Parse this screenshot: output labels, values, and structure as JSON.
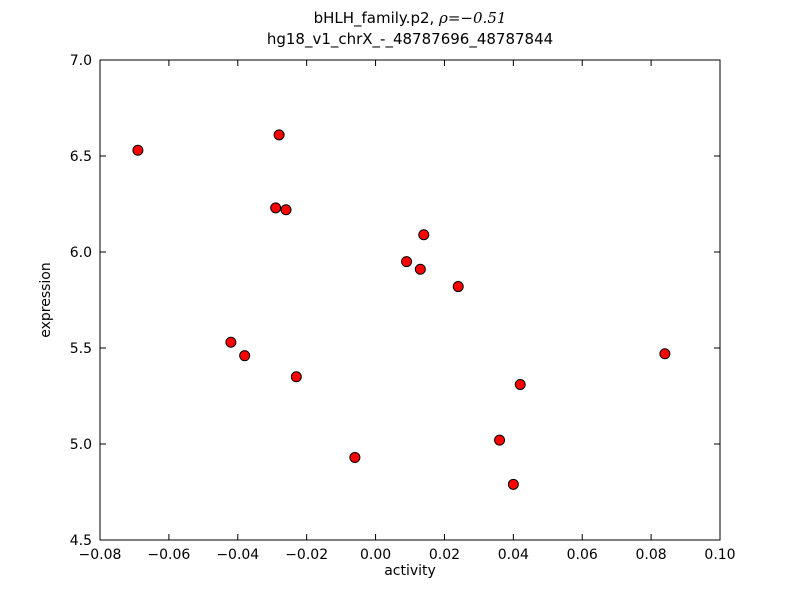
{
  "chart_data": {
    "type": "scatter",
    "title_prefix": "bHLH_family.p2, ",
    "title_math": "ρ=−0.51",
    "title_line2": "hg18_v1_chrX_-_48787696_48787844",
    "xlabel": "activity",
    "ylabel": "expression",
    "xlim": [
      -0.08,
      0.1
    ],
    "ylim": [
      4.5,
      7.0
    ],
    "xticks": {
      "values": [
        -0.08,
        -0.06,
        -0.04,
        -0.02,
        0.0,
        0.02,
        0.04,
        0.06,
        0.08,
        0.1
      ],
      "labels": [
        "−0.08",
        "−0.06",
        "−0.04",
        "−0.02",
        "0.00",
        "0.02",
        "0.04",
        "0.06",
        "0.08",
        "0.10"
      ]
    },
    "yticks": {
      "values": [
        4.5,
        5.0,
        5.5,
        6.0,
        6.5,
        7.0
      ],
      "labels": [
        "4.5",
        "5.0",
        "5.5",
        "6.0",
        "6.5",
        "7.0"
      ]
    },
    "grid": false,
    "legend": "none",
    "marker_color": "#ff0000",
    "marker_edge_color": "#000000",
    "points": [
      [
        -0.069,
        6.53
      ],
      [
        -0.028,
        6.61
      ],
      [
        -0.029,
        6.23
      ],
      [
        -0.026,
        6.22
      ],
      [
        0.014,
        6.09
      ],
      [
        0.009,
        5.95
      ],
      [
        0.013,
        5.91
      ],
      [
        0.024,
        5.82
      ],
      [
        -0.042,
        5.53
      ],
      [
        -0.038,
        5.46
      ],
      [
        0.084,
        5.47
      ],
      [
        -0.023,
        5.35
      ],
      [
        0.042,
        5.31
      ],
      [
        0.036,
        5.02
      ],
      [
        -0.006,
        4.93
      ],
      [
        0.04,
        4.79
      ]
    ]
  }
}
